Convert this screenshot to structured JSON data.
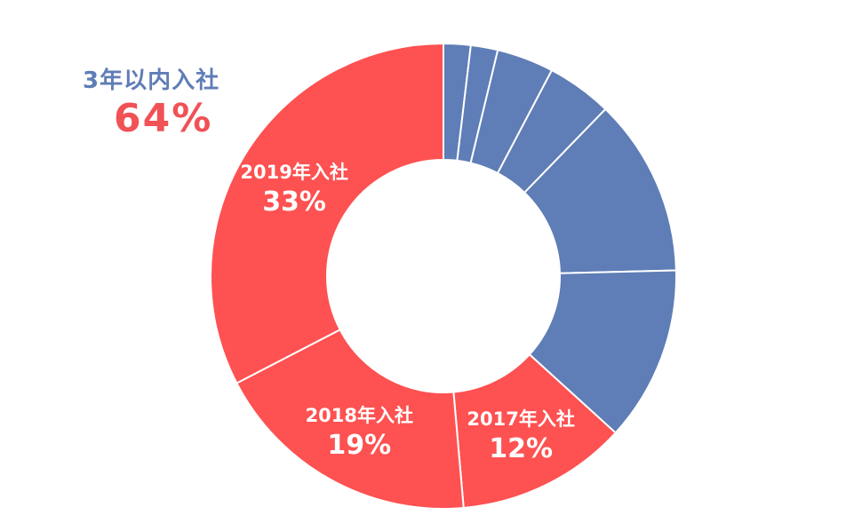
{
  "summary": {
    "title": "3年以内入社",
    "value": "64%"
  },
  "colors": {
    "recent": "#fe5151",
    "older": "#5f7db6",
    "summary_title": "#5f7db6",
    "summary_value": "#f05255",
    "divider": "#ffffff",
    "label_text": "#ffffff"
  },
  "chart_data": {
    "type": "pie",
    "variant": "donut",
    "start_angle_deg": 0,
    "direction": "clockwise",
    "slices": [
      {
        "label": "",
        "value": 1.9,
        "group": "older"
      },
      {
        "label": "",
        "value": 1.9,
        "group": "older"
      },
      {
        "label": "",
        "value": 4.0,
        "group": "older"
      },
      {
        "label": "",
        "value": 4.6,
        "group": "older"
      },
      {
        "label": "",
        "value": 12.5,
        "group": "older"
      },
      {
        "label": "",
        "value": 12.3,
        "group": "older"
      },
      {
        "label": "2017年入社",
        "value": 12,
        "display": "12%",
        "group": "recent"
      },
      {
        "label": "2018年入社",
        "value": 19,
        "display": "19%",
        "group": "recent"
      },
      {
        "label": "2019年入社",
        "value": 33,
        "display": "33%",
        "group": "recent"
      }
    ]
  }
}
